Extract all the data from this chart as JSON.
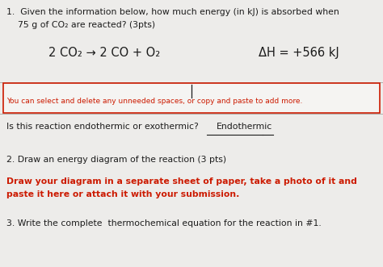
{
  "bg_color": "#edecea",
  "line1": "1.  Given the information below, how much energy (in kJ) is absorbed when",
  "line2": "    75 g of CO₂ are reacted? (3pts)",
  "equation_left": "2 CO₂ → 2 CO + O₂",
  "equation_right": "ΔH = +566 kJ",
  "box_hint": "You can select and delete any unneeded spaces, or copy and paste to add more.",
  "q_text": "Is this reaction endothermic or exothermic?   ",
  "answer": "Endothermic",
  "q2": "2. Draw an energy diagram of the reaction (3 pts)",
  "q2_red1": "Draw your diagram in a separate sheet of paper, take a photo of it and",
  "q2_red2": "paste it here or attach it with your submission.",
  "q3": "3. Write the complete  thermochemical equation for the reaction in #1.",
  "black": "#1c1c1c",
  "red": "#cc1a00",
  "box_border": "#cc1a00"
}
